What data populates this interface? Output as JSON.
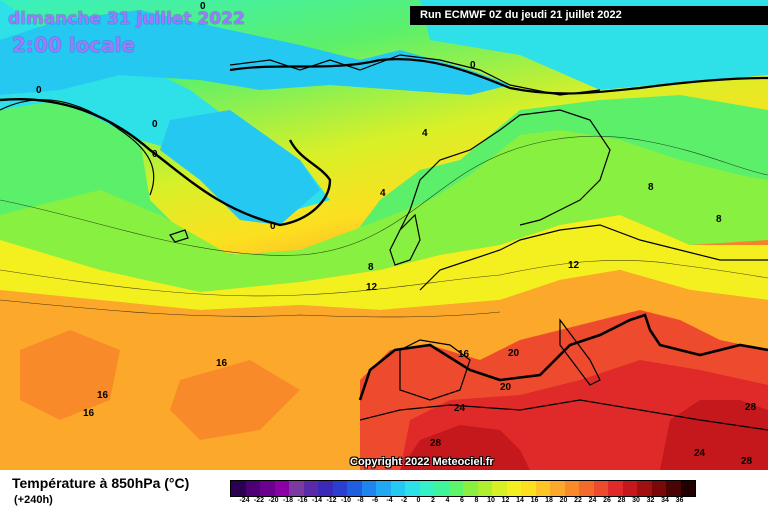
{
  "header": {
    "date": "dimanche 31 juillet 2022",
    "time": "2:00 locale",
    "run": "Run ECMWF 0Z du jeudi 21 juillet 2022"
  },
  "copyright": "Copyright 2022 Meteociel.fr",
  "legend": {
    "title": "Température à 850hPa (°C)",
    "subtitle": "(+240h)",
    "ticks": [
      "-24",
      "-22",
      "-20",
      "-18",
      "-16",
      "-14",
      "-12",
      "-10",
      "-8",
      "-6",
      "-4",
      "-2",
      "0",
      "2",
      "4",
      "6",
      "8",
      "10",
      "12",
      "14",
      "16",
      "18",
      "20",
      "22",
      "24",
      "26",
      "28",
      "30",
      "32",
      "34",
      "36"
    ],
    "colors": [
      "#2b0052",
      "#4c0073",
      "#6a008e",
      "#8a00a6",
      "#7a3aa0",
      "#5a2ba8",
      "#3b2ab8",
      "#2a3fd0",
      "#1f5ee0",
      "#1f85ee",
      "#22a8f2",
      "#25c8f0",
      "#2ee0e8",
      "#36f0c8",
      "#3ef59a",
      "#5cf56a",
      "#88f040",
      "#b0ee30",
      "#d6f025",
      "#f4f020",
      "#fce020",
      "#fcc425",
      "#fca82a",
      "#f98a2a",
      "#f46a2c",
      "#ee4a2e",
      "#e02a2a",
      "#c4181c",
      "#a01010",
      "#7a0808",
      "#4a0404",
      "#200000"
    ]
  },
  "isotherm_labels": [
    {
      "text": "0"
    },
    {
      "text": "0"
    },
    {
      "text": "0"
    },
    {
      "text": "0"
    },
    {
      "text": "0"
    },
    {
      "text": "0"
    },
    {
      "text": "4"
    },
    {
      "text": "4"
    },
    {
      "text": "8"
    },
    {
      "text": "8"
    },
    {
      "text": "8"
    },
    {
      "text": "12"
    },
    {
      "text": "12"
    },
    {
      "text": "16"
    },
    {
      "text": "16"
    },
    {
      "text": "16"
    },
    {
      "text": "16"
    },
    {
      "text": "20"
    },
    {
      "text": "20"
    },
    {
      "text": "24"
    },
    {
      "text": "24"
    },
    {
      "text": "28"
    },
    {
      "text": "28"
    },
    {
      "text": "28"
    }
  ]
}
